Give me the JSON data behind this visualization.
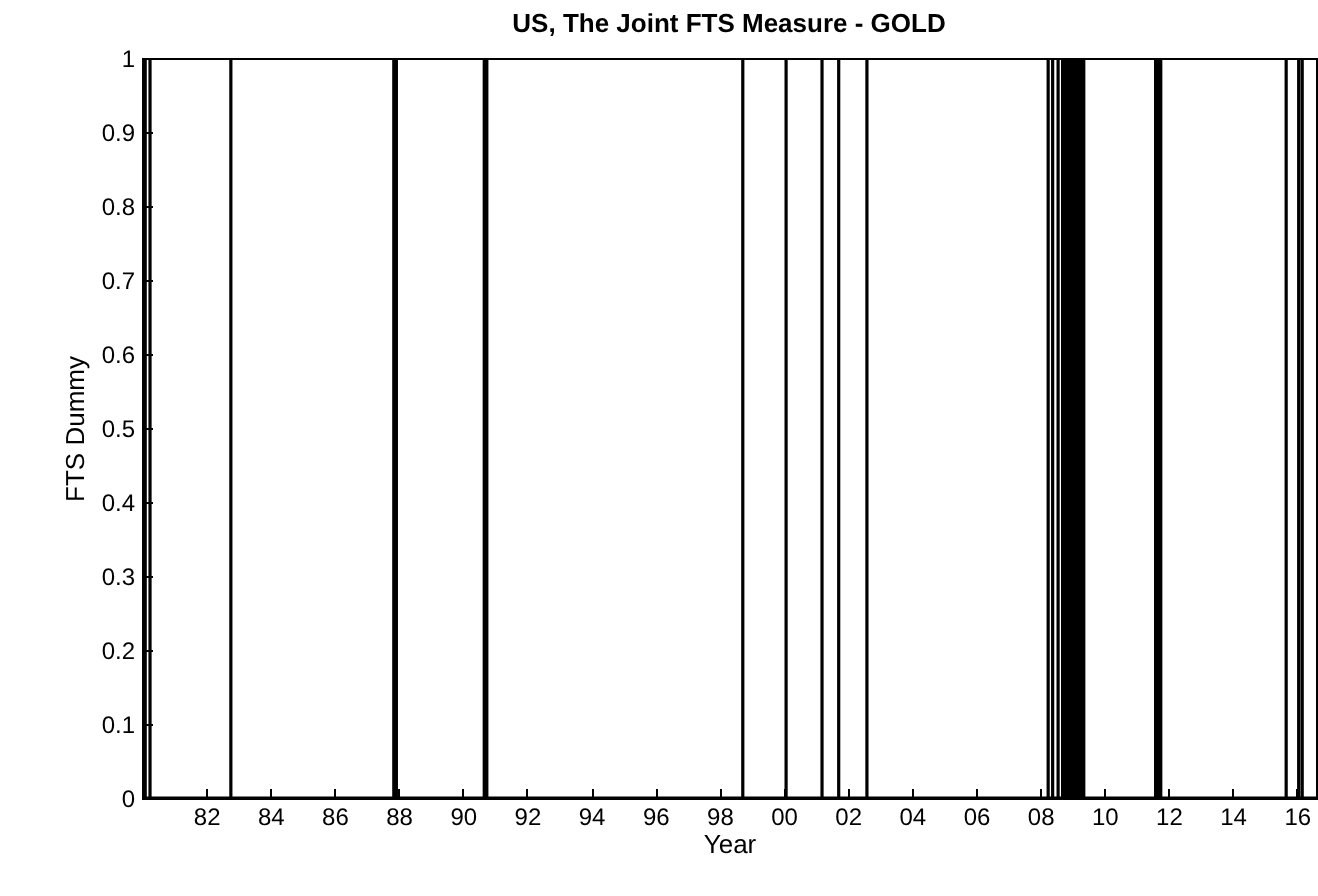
{
  "chart_data": {
    "type": "line",
    "title": "US, The Joint FTS Measure - GOLD",
    "xlabel": "Year",
    "ylabel": "FTS Dummy",
    "xlim": [
      1980,
      2016.6
    ],
    "ylim": [
      0,
      1
    ],
    "xticks": [
      {
        "value": 1982,
        "label": "82"
      },
      {
        "value": 1984,
        "label": "84"
      },
      {
        "value": 1986,
        "label": "86"
      },
      {
        "value": 1988,
        "label": "88"
      },
      {
        "value": 1990,
        "label": "90"
      },
      {
        "value": 1992,
        "label": "92"
      },
      {
        "value": 1994,
        "label": "94"
      },
      {
        "value": 1996,
        "label": "96"
      },
      {
        "value": 1998,
        "label": "98"
      },
      {
        "value": 2000,
        "label": "00"
      },
      {
        "value": 2002,
        "label": "02"
      },
      {
        "value": 2004,
        "label": "04"
      },
      {
        "value": 2006,
        "label": "06"
      },
      {
        "value": 2008,
        "label": "08"
      },
      {
        "value": 2010,
        "label": "10"
      },
      {
        "value": 2012,
        "label": "12"
      },
      {
        "value": 2014,
        "label": "14"
      },
      {
        "value": 2016,
        "label": "16"
      }
    ],
    "yticks": [
      0,
      0.1,
      0.2,
      0.3,
      0.4,
      0.5,
      0.6,
      0.7,
      0.8,
      0.9,
      1
    ],
    "grid": false,
    "series": [
      {
        "color": "#000000",
        "x": [
          1980,
          1980.1,
          1980.1,
          1980.1,
          1980.25,
          1980.25,
          1980.25,
          1982.77,
          1982.77,
          1982.77,
          1987.85,
          1987.85,
          1987.85,
          1987.93,
          1987.93,
          1987.93,
          1990.67,
          1990.67,
          1990.67,
          1990.75,
          1990.75,
          1990.75,
          1998.73,
          1998.73,
          1998.73,
          2000.08,
          2000.08,
          2000.08,
          2001.2,
          2001.2,
          2001.2,
          2001.72,
          2001.72,
          2001.72,
          2002.6,
          2002.6,
          2002.6,
          2008.25,
          2008.25,
          2008.25,
          2008.39,
          2008.39,
          2008.39,
          2008.56,
          2008.56,
          2008.56,
          2008.7,
          2008.7,
          2008.7,
          2008.78,
          2008.78,
          2008.78,
          2008.87,
          2008.87,
          2008.87,
          2008.95,
          2008.95,
          2008.95,
          2009.03,
          2009.03,
          2009.03,
          2009.12,
          2009.12,
          2009.12,
          2009.2,
          2009.2,
          2009.2,
          2009.28,
          2009.28,
          2009.28,
          2009.36,
          2009.36,
          2009.36,
          2011.6,
          2011.6,
          2011.6,
          2011.68,
          2011.68,
          2011.68,
          2011.76,
          2011.76,
          2011.76,
          2015.67,
          2015.67,
          2015.67,
          2016.06,
          2016.06,
          2016.06,
          2016.17,
          2016.17,
          2016.17,
          2016.6
        ],
        "values": [
          0,
          0,
          1,
          0,
          0,
          1,
          0,
          0,
          1,
          0,
          0,
          1,
          0,
          0,
          1,
          0,
          0,
          1,
          0,
          0,
          1,
          0,
          0,
          1,
          0,
          0,
          1,
          0,
          0,
          1,
          0,
          0,
          1,
          0,
          0,
          1,
          0,
          0,
          1,
          0,
          0,
          1,
          0,
          0,
          1,
          0,
          0,
          1,
          0,
          0,
          1,
          0,
          0,
          1,
          0,
          0,
          1,
          0,
          0,
          1,
          0,
          0,
          1,
          0,
          0,
          1,
          0,
          0,
          1,
          0,
          0,
          1,
          0,
          0,
          1,
          0,
          0,
          1,
          0,
          0,
          1,
          0,
          0,
          1,
          0,
          0,
          1,
          0,
          0,
          1,
          0,
          0
        ]
      }
    ]
  }
}
